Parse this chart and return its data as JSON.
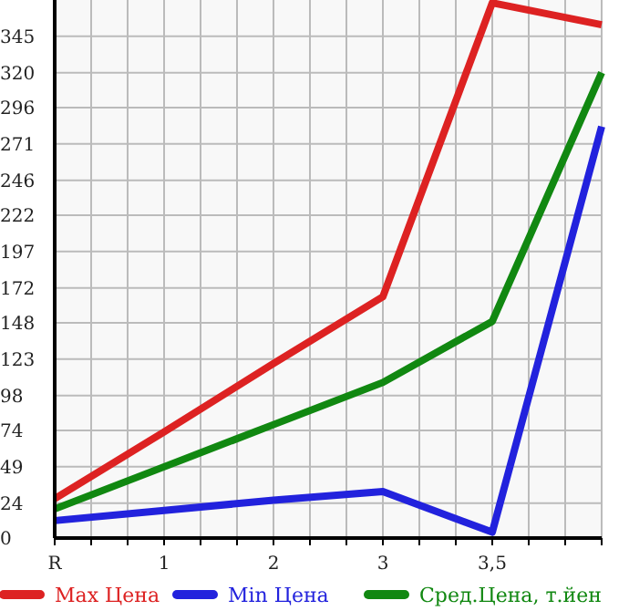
{
  "chart_data": {
    "type": "line",
    "categories": [
      "R",
      "1",
      "2",
      "3",
      "3,5",
      null
    ],
    "series": [
      {
        "name": "Max Цена",
        "color": "#dd2222",
        "values": [
          27,
          73,
          120,
          166,
          368,
          353
        ]
      },
      {
        "name": "Min Цена",
        "color": "#2222dd",
        "values": [
          12,
          19,
          26,
          32,
          4,
          283
        ]
      },
      {
        "name": "Сред.Цена, т.йен",
        "color": "#118811",
        "values": [
          20,
          49,
          78,
          107,
          149,
          320
        ]
      }
    ],
    "ylim": [
      0,
      370
    ],
    "yticks": [
      0,
      24,
      49,
      74,
      98,
      123,
      148,
      172,
      197,
      222,
      246,
      271,
      296,
      320,
      345
    ],
    "grid": true,
    "legend": "bottom",
    "marker": "none",
    "line_style": "solid"
  }
}
